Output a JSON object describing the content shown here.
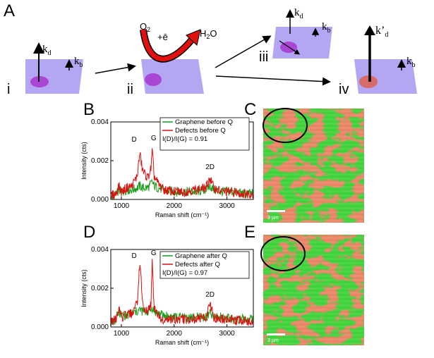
{
  "panel_labels": {
    "A": "A",
    "B": "B",
    "C": "C",
    "D": "D",
    "E": "E"
  },
  "schematic": {
    "steps": [
      "i",
      "ii",
      "iii",
      "iv"
    ],
    "kd": "k",
    "kd_sub": "d",
    "kb": "k",
    "kb_sub": "b",
    "kd_prime": "k’",
    "kd_prime_sub": "d",
    "o2": "O",
    "o2_sub": "2",
    "electron": "+ē",
    "h2o_pre": "H",
    "h2o_sub": "2",
    "h2o_post": "O"
  },
  "colors": {
    "graphene": "#1a9e1a",
    "defects": "#dd1010",
    "substrate": "#b3a6f2",
    "spot": "#a946d6",
    "spot_iv": "#d86a6a",
    "map_green": "#3fd23a",
    "map_red": "#cf3a22"
  },
  "maps": [
    {
      "scalebar": "3 µm"
    },
    {
      "scalebar": "3 µm"
    }
  ],
  "chart_data": [
    {
      "type": "line",
      "xlabel": "Raman shift (cm⁻¹)",
      "ylabel": "Intensity (cts)",
      "xlim": [
        800,
        3500
      ],
      "ylim": [
        0,
        0.004
      ],
      "xticks": [
        "1000",
        "2000",
        "3000"
      ],
      "yticks": [
        "0.000",
        "0.002",
        "0.004"
      ],
      "annotation": "I(D)/I(G) = 0.91",
      "peak_labels": [
        "D",
        "G",
        "2D"
      ],
      "series": [
        {
          "name": "Graphene before Q",
          "x": [
            800,
            900,
            950,
            1000,
            1100,
            1200,
            1300,
            1350,
            1400,
            1500,
            1560,
            1585,
            1620,
            1700,
            1800,
            2000,
            2200,
            2400,
            2600,
            2680,
            2750,
            2900,
            3100,
            3300,
            3500
          ],
          "values": [
            0.00015,
            0.0002,
            0.0005,
            0.0004,
            0.0005,
            0.0005,
            0.0006,
            0.0007,
            0.0006,
            0.0006,
            0.0008,
            0.0009,
            0.0007,
            0.0006,
            0.0005,
            0.0004,
            0.0004,
            0.0004,
            0.0005,
            0.0007,
            0.0005,
            0.0004,
            0.0004,
            0.0003,
            0.0003
          ]
        },
        {
          "name": "Defects before Q",
          "x": [
            800,
            900,
            950,
            1000,
            1100,
            1200,
            1300,
            1350,
            1400,
            1450,
            1500,
            1560,
            1585,
            1620,
            1700,
            1800,
            2000,
            2200,
            2400,
            2600,
            2680,
            2750,
            2900,
            3100,
            3300,
            3500
          ],
          "values": [
            0.0002,
            0.0003,
            0.0007,
            0.0004,
            0.0006,
            0.0007,
            0.0012,
            0.0024,
            0.0015,
            0.0013,
            0.0011,
            0.0016,
            0.0025,
            0.0012,
            0.0008,
            0.0005,
            0.0004,
            0.0004,
            0.0005,
            0.0006,
            0.0011,
            0.0006,
            0.0004,
            0.0004,
            0.0003,
            0.0003
          ]
        }
      ]
    },
    {
      "type": "line",
      "xlabel": "Raman shift (cm⁻¹)",
      "ylabel": "Intensity (cts)",
      "xlim": [
        800,
        3500
      ],
      "ylim": [
        0,
        0.004
      ],
      "xticks": [
        "1000",
        "2000",
        "3000"
      ],
      "yticks": [
        "0.000",
        "0.002",
        "0.004"
      ],
      "annotation": "I(D)/I(G) = 0.97",
      "peak_labels": [
        "D",
        "G",
        "2D"
      ],
      "series": [
        {
          "name": "Graphene after Q",
          "x": [
            800,
            900,
            950,
            1000,
            1100,
            1200,
            1300,
            1350,
            1400,
            1500,
            1560,
            1585,
            1620,
            1700,
            1800,
            2000,
            2200,
            2400,
            2600,
            2680,
            2750,
            2900,
            3100,
            3300,
            3500
          ],
          "values": [
            0.0003,
            0.0004,
            0.0008,
            0.0006,
            0.0006,
            0.0007,
            0.0008,
            0.0009,
            0.0008,
            0.0008,
            0.0009,
            0.001,
            0.0008,
            0.0007,
            0.0006,
            0.0005,
            0.0005,
            0.0005,
            0.0005,
            0.0007,
            0.0005,
            0.0005,
            0.0004,
            0.0004,
            0.0004
          ]
        },
        {
          "name": "Defects after Q",
          "x": [
            800,
            900,
            950,
            1000,
            1100,
            1200,
            1300,
            1350,
            1400,
            1450,
            1500,
            1560,
            1585,
            1620,
            1700,
            1800,
            2000,
            2200,
            2400,
            2600,
            2680,
            2750,
            2900,
            3100,
            3300,
            3500
          ],
          "values": [
            0.0003,
            0.0004,
            0.0009,
            0.0005,
            0.0006,
            0.0007,
            0.0012,
            0.0034,
            0.0013,
            0.0008,
            0.0008,
            0.0012,
            0.0034,
            0.001,
            0.0006,
            0.0004,
            0.0004,
            0.0004,
            0.0004,
            0.0005,
            0.0012,
            0.0005,
            0.0004,
            0.0004,
            0.0003,
            0.0003
          ]
        }
      ]
    }
  ]
}
